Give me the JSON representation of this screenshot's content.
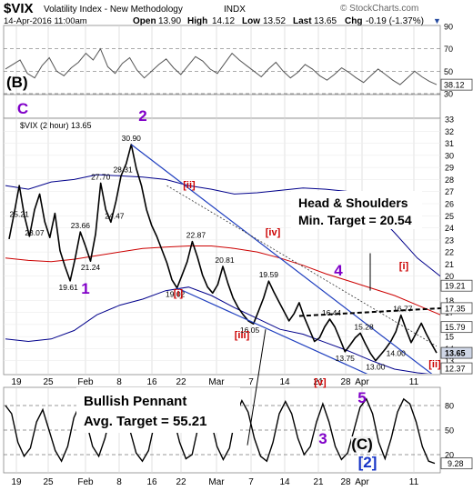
{
  "header": {
    "symbol": "$VIX",
    "name": "Volatility Index - New Methodology",
    "exchange": "INDX",
    "datetime": "14-Apr-2016 11:00am",
    "open_label": "Open",
    "open": "13.90",
    "high_label": "High",
    "high": "14.12",
    "low_label": "Low",
    "low": "13.52",
    "last_label": "Last",
    "last": "13.65",
    "chg_label": "Chg",
    "chg": "-0.19 (-1.37%)",
    "watermark": "© StockCharts.com"
  },
  "colors": {
    "price": "#000000",
    "ma_red": "#cc0000",
    "band_blue": "#00008b",
    "trend_blue": "#1f3fbf",
    "wave_purple": "#8000c8",
    "wave_red": "#cc0000",
    "tag_bg": "#3c4a6e",
    "tag_fill": "#cfd6e6"
  },
  "chart_data": [
    {
      "type": "line",
      "panel": "top oscillator",
      "label": "(B)",
      "ylim": [
        30,
        90
      ],
      "y_ticks": [
        90,
        70,
        50,
        30
      ],
      "dashed_levels": [
        70,
        50,
        30
      ],
      "last_value": "38.12",
      "values": [
        52,
        56,
        60,
        48,
        44,
        55,
        62,
        50,
        46,
        53,
        58,
        66,
        60,
        70,
        54,
        48,
        57,
        62,
        51,
        44,
        50,
        56,
        61,
        53,
        47,
        55,
        63,
        59,
        52,
        48,
        57,
        66,
        60,
        55,
        50,
        45,
        52,
        58,
        50,
        44,
        49,
        56,
        52,
        46,
        42,
        47,
        53,
        49,
        44,
        40,
        46,
        52,
        47,
        42,
        38,
        44,
        50,
        45,
        41,
        38
      ]
    },
    {
      "type": "line",
      "panel": "main price",
      "legend": "$VIX (2 hour) 13.65",
      "ylim": [
        12,
        33
      ],
      "y_ticks": [
        33,
        32,
        31,
        30,
        29,
        28,
        27,
        26,
        25,
        24,
        23,
        22,
        21,
        20,
        19,
        18,
        17,
        16,
        15,
        14,
        13
      ],
      "x_tick_labels": [
        "19",
        "25",
        "Feb",
        "8",
        "16",
        "22",
        "Mar",
        "7",
        "14",
        "21",
        "28",
        "Apr",
        "11"
      ],
      "series": [
        {
          "values": [
            23.07,
            25.21,
            27.5,
            25.0,
            23.3,
            25.5,
            26.8,
            24.5,
            23.2,
            25.2,
            22.1,
            20.8,
            19.61,
            21.5,
            23.66,
            22.5,
            21.24,
            23.5,
            27.7,
            25.5,
            24.47,
            26.2,
            28.31,
            29.3,
            30.9,
            28.9,
            27.5,
            25.5,
            24.2,
            23.3,
            22.2,
            21.1,
            19.7,
            19.02,
            20.1,
            21.2,
            22.87,
            21.6,
            20.1,
            19.1,
            18.6,
            19.3,
            20.81,
            19.4,
            18.2,
            17.4,
            16.8,
            16.3,
            16.05,
            17.1,
            18.2,
            19.59,
            18.7,
            17.9,
            17.1,
            16.3,
            16.9,
            17.8,
            16.6,
            15.6,
            14.6,
            14.9,
            15.8,
            16.44,
            15.8,
            14.8,
            13.75,
            14.3,
            14.9,
            15.28,
            14.4,
            13.6,
            13.0,
            13.5,
            14.0,
            14.6,
            15.4,
            16.77,
            15.6,
            14.5,
            15.3,
            16.1,
            15.2,
            14.4,
            13.65
          ]
        },
        {
          "name": "200-period MA",
          "values": [
            21.5,
            21.3,
            21.2,
            21.4,
            21.7,
            22.0,
            22.3,
            22.4,
            22.5,
            22.5,
            22.3,
            22.0,
            21.5,
            20.9,
            20.2,
            19.6,
            19.0,
            18.4,
            17.6,
            16.8
          ]
        },
        {
          "name": "upper band",
          "values": [
            27.5,
            27.2,
            27.8,
            28.0,
            28.4,
            28.3,
            28.2,
            28.0,
            27.5,
            27.2,
            26.8,
            26.9,
            27.1,
            27.3,
            27.2,
            27.0,
            25.6,
            23.6,
            21.5,
            20.0
          ]
        },
        {
          "name": "lower band",
          "values": [
            14.8,
            14.6,
            14.8,
            15.5,
            16.8,
            17.6,
            18.1,
            18.8,
            19.1,
            18.4,
            17.4,
            16.5,
            15.6,
            15.2,
            14.5,
            13.8,
            13.0,
            12.3,
            12.0,
            11.8
          ]
        }
      ],
      "price_labels": [
        "23.07",
        "25.21",
        "19.61",
        "23.66",
        "21.24",
        "27.70",
        "24.47",
        "28.31",
        "30.90",
        "19.02",
        "22.87",
        "20.81",
        "16.05",
        "19.59",
        "16.44",
        "13.75",
        "15.28",
        "13.00",
        "14.00",
        "16.77"
      ],
      "right_axis_tags": [
        {
          "value": "19.21",
          "style": "outline"
        },
        {
          "value": "17.35",
          "style": "outline"
        },
        {
          "value": "15.79",
          "style": "outline"
        },
        {
          "value": "13.65",
          "style": "filled"
        },
        {
          "value": "12.37",
          "style": "outline"
        }
      ],
      "wave_labels_purple": [
        "C",
        "1",
        "2",
        "3",
        "4",
        "5"
      ],
      "wave_labels_red": [
        "[i]",
        "[ii]",
        "[iii]",
        "[iv]",
        "[v]",
        "[i]",
        "[ii]"
      ],
      "wave_labels_blue": [
        "(C)",
        "[2]"
      ],
      "annotations": [
        {
          "title": "Head & Shoulders",
          "text": "Min. Target = 20.54"
        },
        {
          "title": "Bullish Pennant",
          "text": "Avg. Target = 55.21"
        }
      ]
    },
    {
      "type": "line",
      "panel": "bottom stochastic",
      "ylim": [
        0,
        100
      ],
      "y_ticks": [
        80,
        50,
        20
      ],
      "last_value": "9.28",
      "values": [
        80,
        70,
        35,
        18,
        28,
        60,
        75,
        50,
        25,
        12,
        30,
        65,
        82,
        60,
        30,
        18,
        40,
        72,
        86,
        78,
        50,
        22,
        12,
        25,
        60,
        84,
        88,
        65,
        35,
        15,
        20,
        55,
        80,
        62,
        30,
        14,
        28,
        68,
        86,
        72,
        40,
        18,
        12,
        35,
        70,
        85,
        70,
        40,
        20,
        30,
        60,
        82,
        60,
        30,
        14,
        22,
        50,
        78,
        88,
        70,
        35,
        15,
        40,
        72,
        88,
        82,
        60,
        30,
        12,
        9.28
      ]
    }
  ]
}
